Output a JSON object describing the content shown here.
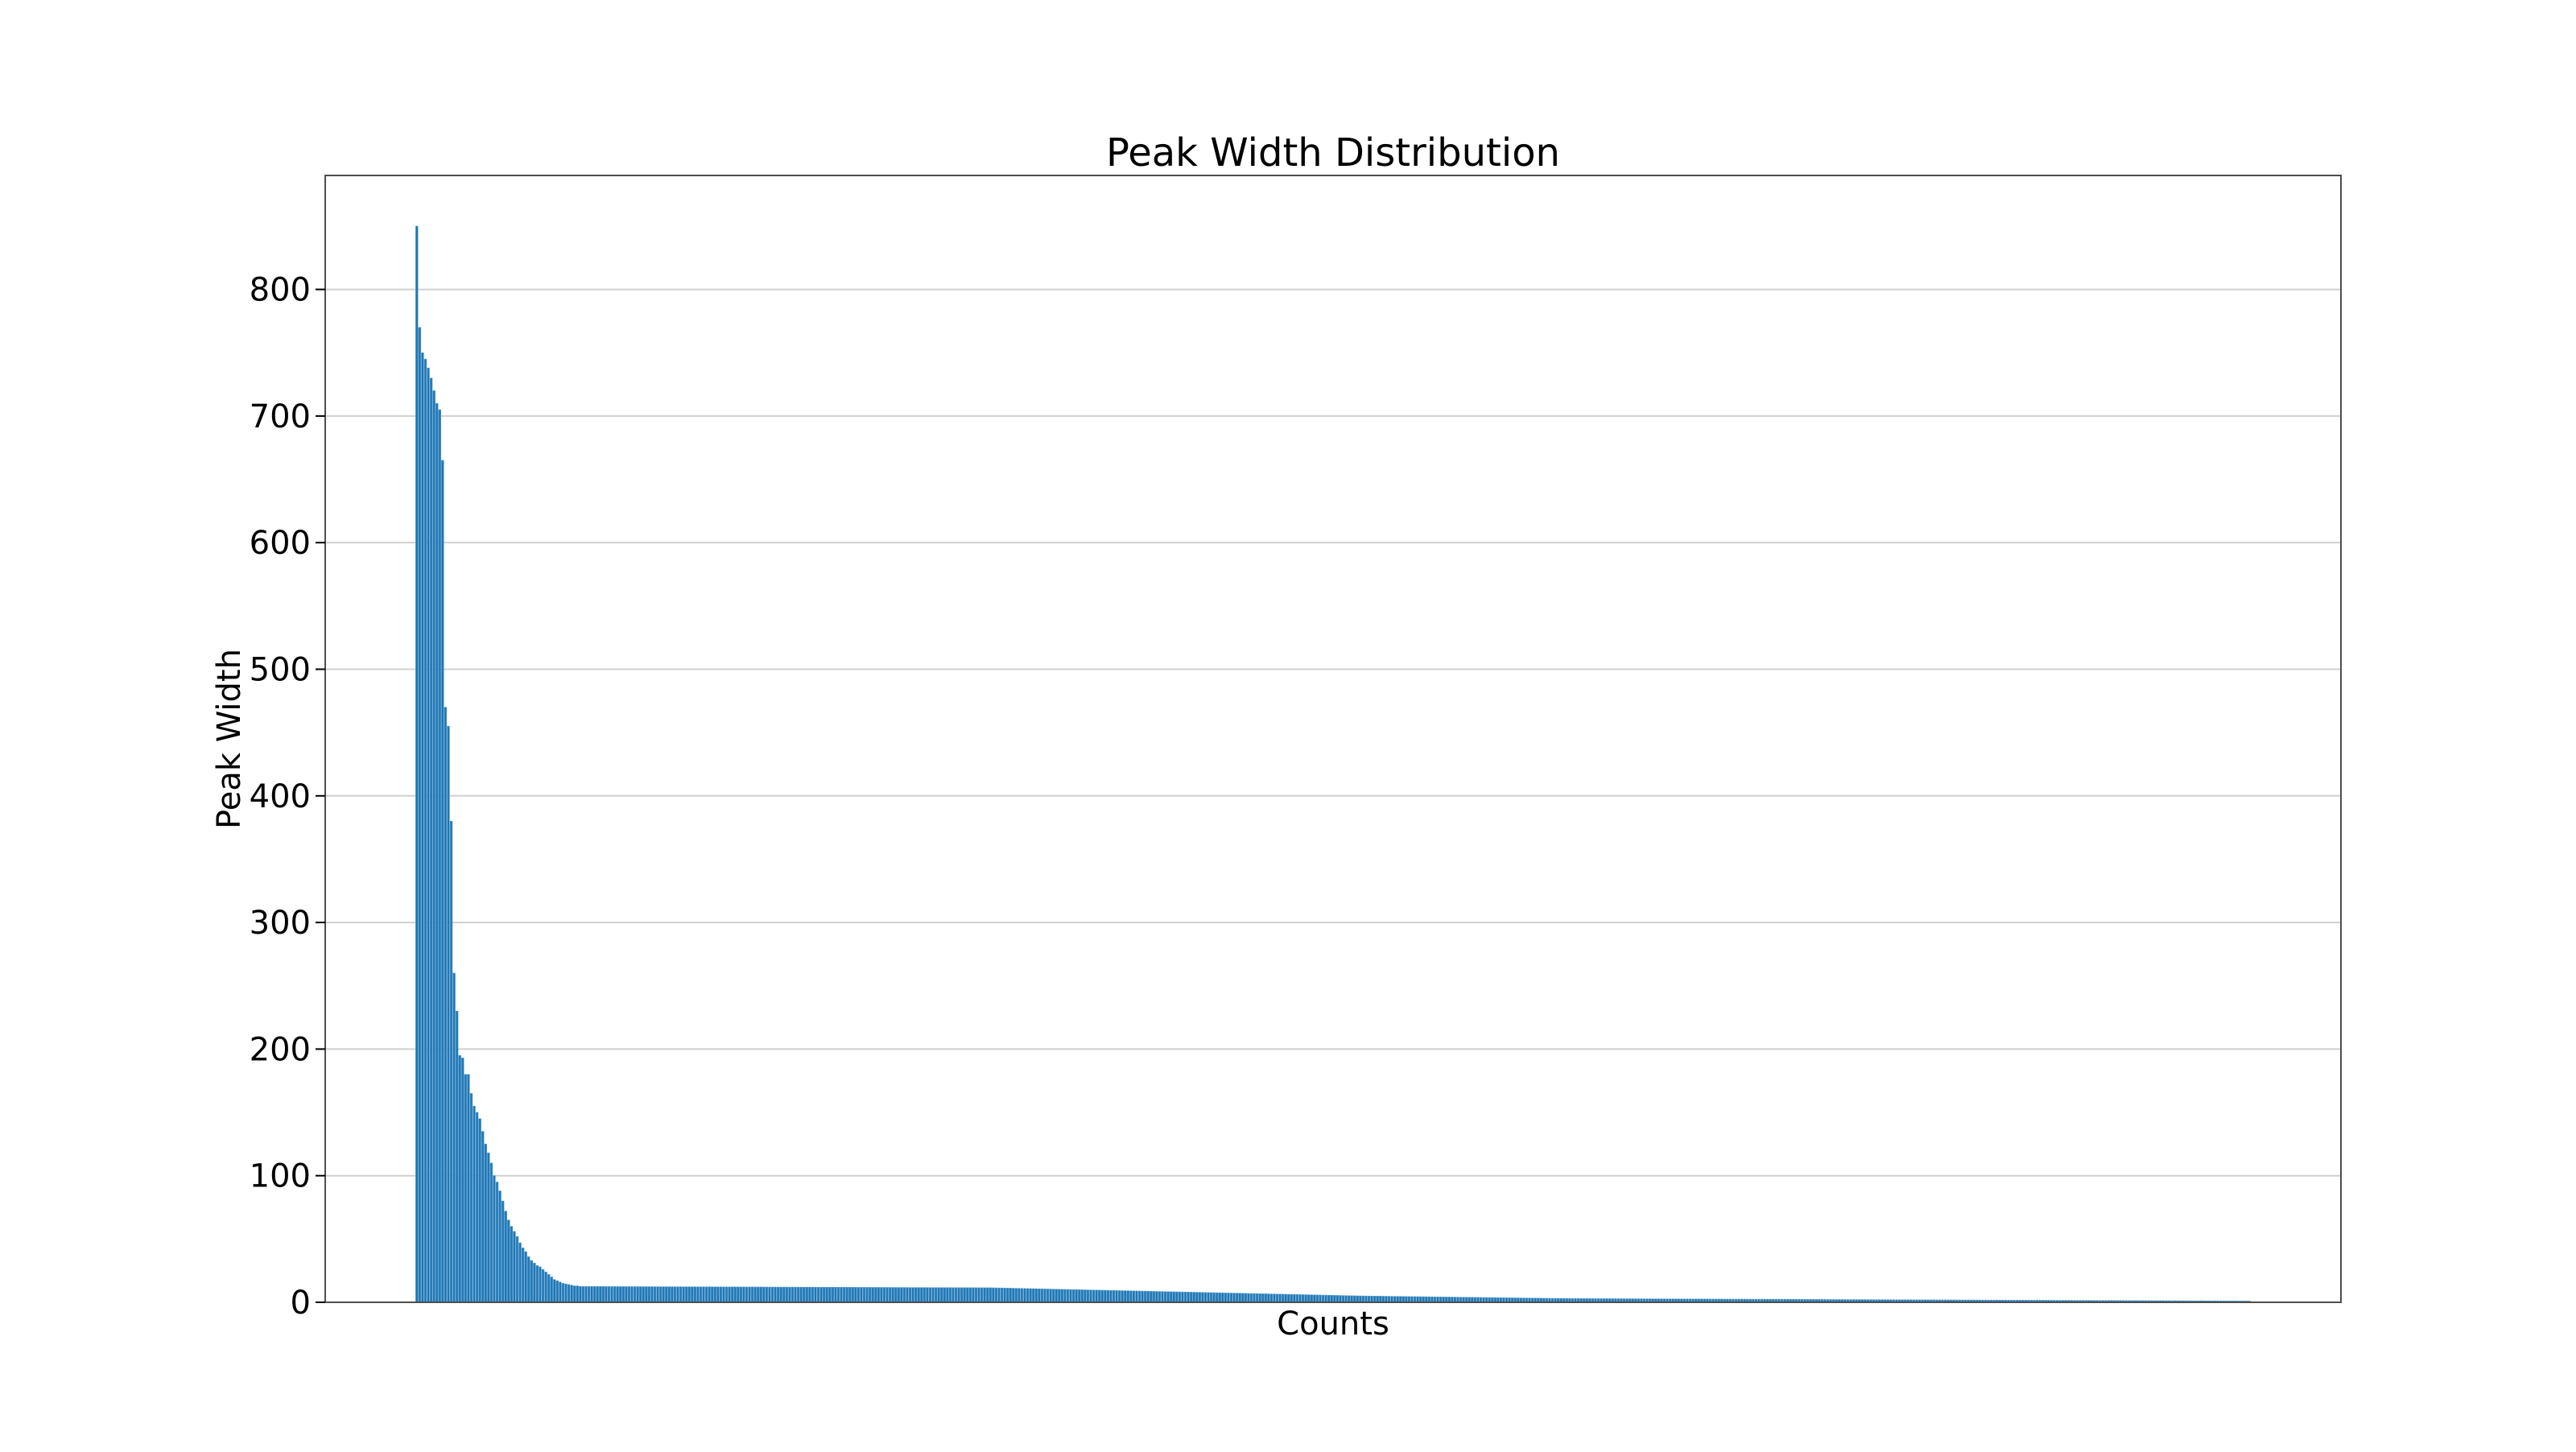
{
  "chart_data": {
    "type": "bar",
    "title": "Peak Width Distribution",
    "xlabel": "Counts",
    "ylabel": "Peak Width",
    "ylim": [
      0,
      890
    ],
    "yticks": [
      0,
      100,
      200,
      300,
      400,
      500,
      600,
      700,
      800
    ],
    "grid": "y",
    "legend": "none",
    "x_ticks_shown": false,
    "bar_count": 640,
    "values_head": [
      850,
      770,
      750,
      745,
      738,
      730,
      720,
      710,
      705,
      665,
      470,
      455,
      380,
      260,
      230,
      195,
      193,
      180,
      180,
      165,
      155,
      150,
      145,
      135,
      125,
      118,
      110,
      100,
      95,
      88,
      80,
      72,
      65,
      60,
      56,
      52,
      47,
      43,
      40,
      36,
      33,
      31,
      29,
      28,
      26,
      24,
      22,
      20,
      18,
      17,
      16,
      15,
      14.5,
      14,
      13.5,
      13,
      13,
      12.5,
      12.5,
      12.5
    ],
    "tail_profile": [
      {
        "from_index": 60,
        "to_index": 200,
        "start": 12.5,
        "end": 11.5
      },
      {
        "from_index": 200,
        "to_index": 270,
        "start": 11.5,
        "end": 8
      },
      {
        "from_index": 270,
        "to_index": 330,
        "start": 8,
        "end": 5
      },
      {
        "from_index": 330,
        "to_index": 400,
        "start": 5,
        "end": 3
      },
      {
        "from_index": 400,
        "to_index": 640,
        "start": 3,
        "end": 1
      }
    ],
    "colors": {
      "bar": "#1f77b4",
      "bar_edge": "#5fa0d0",
      "grid": "#d0d0d0",
      "axes": "#4d4d4d"
    }
  }
}
